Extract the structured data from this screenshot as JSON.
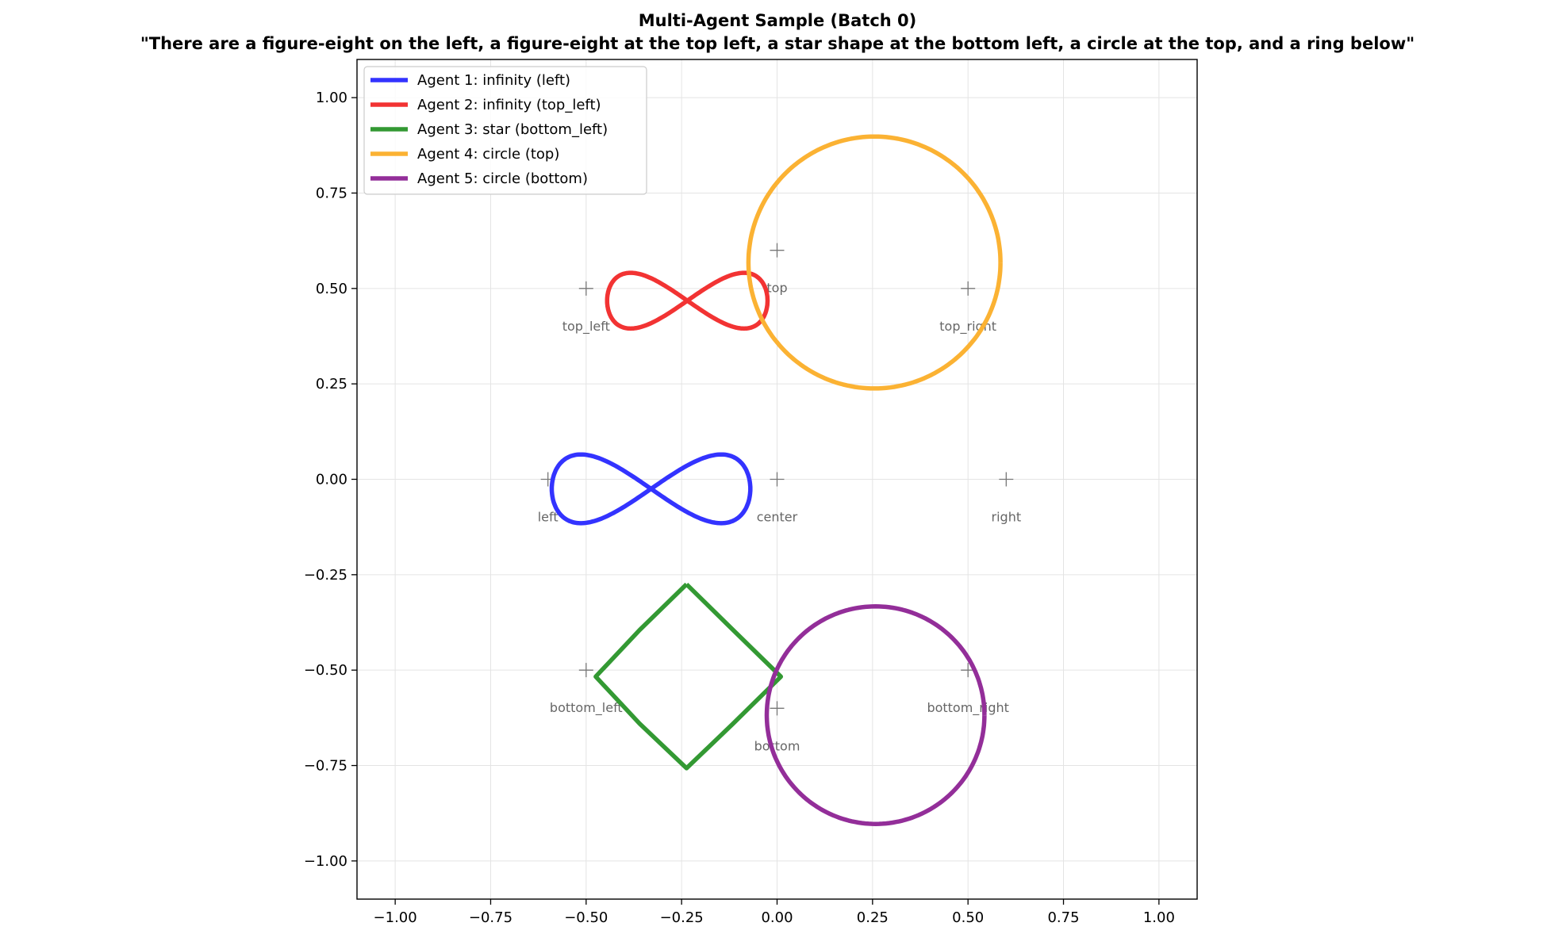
{
  "chart_data": {
    "type": "line",
    "title": "Multi-Agent Sample (Batch 0)",
    "subtitle": "\"There are a figure-eight on the left, a figure-eight at the top left, a star shape at the bottom left, a circle at the top, and a ring below\"",
    "xlim": [
      -1.1,
      1.1
    ],
    "ylim": [
      -1.1,
      1.1
    ],
    "xticks": [
      -1.0,
      -0.75,
      -0.5,
      -0.25,
      0.0,
      0.25,
      0.5,
      0.75,
      1.0
    ],
    "yticks": [
      -1.0,
      -0.75,
      -0.5,
      -0.25,
      0.0,
      0.25,
      0.5,
      0.75,
      1.0
    ],
    "xtick_labels": [
      "−1.00",
      "−0.75",
      "−0.50",
      "−0.25",
      "0.00",
      "0.25",
      "0.50",
      "0.75",
      "1.00"
    ],
    "ytick_labels": [
      "−1.00",
      "−0.75",
      "−0.50",
      "−0.25",
      "0.00",
      "0.25",
      "0.50",
      "0.75",
      "1.00"
    ],
    "grid": true,
    "legend_position": "top-left",
    "anchors": [
      {
        "label": "top_left",
        "x": -0.5,
        "y": 0.5
      },
      {
        "label": "top",
        "x": 0.0,
        "y": 0.6
      },
      {
        "label": "top_right",
        "x": 0.5,
        "y": 0.5
      },
      {
        "label": "left",
        "x": -0.6,
        "y": 0.0
      },
      {
        "label": "center",
        "x": 0.0,
        "y": 0.0
      },
      {
        "label": "right",
        "x": 0.6,
        "y": 0.0
      },
      {
        "label": "bottom_left",
        "x": -0.5,
        "y": -0.5
      },
      {
        "label": "bottom",
        "x": 0.0,
        "y": -0.6
      },
      {
        "label": "bottom_right",
        "x": 0.5,
        "y": -0.5
      }
    ],
    "series": [
      {
        "name": "Agent 1: infinity (left)",
        "color": "#3333ff",
        "shape": "infinity",
        "center": [
          -0.33,
          -0.025
        ],
        "half_width": 0.26,
        "half_height": 0.09
      },
      {
        "name": "Agent 2: infinity (top_left)",
        "color": "#f23333",
        "shape": "infinity",
        "center": [
          -0.235,
          0.468
        ],
        "half_width": 0.21,
        "half_height": 0.073
      },
      {
        "name": "Agent 3: star (bottom_left)",
        "color": "#339933",
        "shape": "star",
        "vertices": [
          [
            -0.237,
            -0.275
          ],
          [
            -0.36,
            -0.395
          ],
          [
            -0.475,
            -0.517
          ],
          [
            -0.36,
            -0.64
          ],
          [
            -0.237,
            -0.757
          ],
          [
            -0.115,
            -0.64
          ],
          [
            0.01,
            -0.517
          ],
          [
            -0.115,
            -0.395
          ]
        ]
      },
      {
        "name": "Agent 4: circle (top)",
        "color": "#fbb233",
        "shape": "circle",
        "center": [
          0.255,
          0.568
        ],
        "radius": 0.33
      },
      {
        "name": "Agent 5: circle (bottom)",
        "color": "#932e99",
        "shape": "circle",
        "center": [
          0.258,
          -0.618
        ],
        "radius": 0.285
      }
    ]
  }
}
